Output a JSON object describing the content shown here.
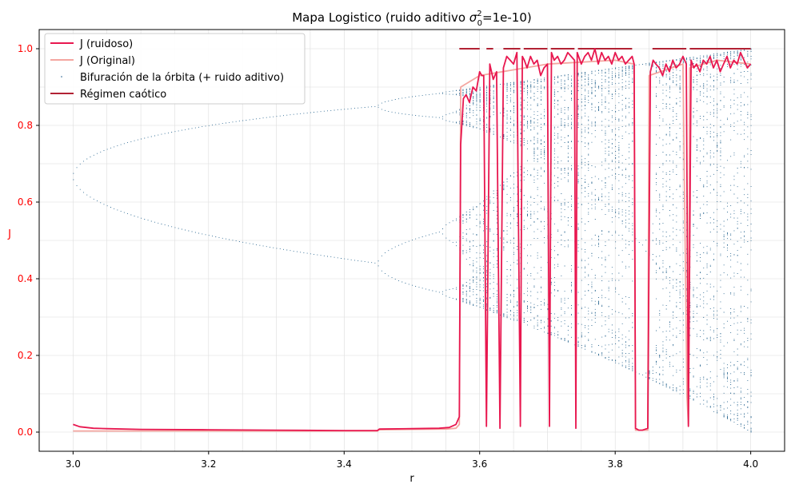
{
  "chart_data": {
    "type": "line",
    "title": "Mapa Logistico (ruido aditivo σ₀²=1e-10)",
    "title_prefix": "Mapa Logistico (ruido aditivo ",
    "title_sigma": "σ",
    "title_sub": "0",
    "title_sup": "2",
    "title_suffix": "=1e-10)",
    "xlabel": "r",
    "ylabel": "J",
    "xlim": [
      2.95,
      4.05
    ],
    "ylim": [
      -0.05,
      1.05
    ],
    "xticks": [
      "3.0",
      "3.2",
      "3.4",
      "3.6",
      "3.8",
      "4.0"
    ],
    "xtick_values": [
      3.0,
      3.2,
      3.4,
      3.6,
      3.8,
      4.0
    ],
    "yticks": [
      "0.0",
      "0.2",
      "0.4",
      "0.6",
      "0.8",
      "1.0"
    ],
    "ytick_values": [
      0.0,
      0.2,
      0.4,
      0.6,
      0.8,
      1.0
    ],
    "grid": true,
    "legend_position": "top-left",
    "colors": {
      "noisy": "#e8174f",
      "original": "#f4a6a0",
      "bifurcation": "#1f5f8b",
      "chaotic": "#b22234",
      "ytick": "#ff0000"
    },
    "series": [
      {
        "name": "J (ruidoso)",
        "style": "line",
        "x": [
          3.0,
          3.01,
          3.03,
          3.05,
          3.1,
          3.2,
          3.3,
          3.4,
          3.449,
          3.452,
          3.5,
          3.54,
          3.555,
          3.565,
          3.57,
          3.572,
          3.576,
          3.58,
          3.585,
          3.59,
          3.595,
          3.6,
          3.603,
          3.606,
          3.61,
          3.615,
          3.62,
          3.625,
          3.63,
          3.635,
          3.64,
          3.645,
          3.65,
          3.655,
          3.66,
          3.663,
          3.666,
          3.67,
          3.675,
          3.68,
          3.685,
          3.69,
          3.695,
          3.7,
          3.703,
          3.706,
          3.71,
          3.715,
          3.72,
          3.725,
          3.73,
          3.735,
          3.74,
          3.742,
          3.744,
          3.748,
          3.75,
          3.755,
          3.76,
          3.765,
          3.77,
          3.775,
          3.78,
          3.785,
          3.79,
          3.795,
          3.8,
          3.805,
          3.81,
          3.815,
          3.82,
          3.825,
          3.828,
          3.83,
          3.835,
          3.84,
          3.845,
          3.848,
          3.852,
          3.856,
          3.86,
          3.865,
          3.87,
          3.875,
          3.88,
          3.885,
          3.89,
          3.895,
          3.9,
          3.905,
          3.908,
          3.912,
          3.916,
          3.92,
          3.925,
          3.93,
          3.935,
          3.94,
          3.945,
          3.95,
          3.955,
          3.96,
          3.965,
          3.97,
          3.975,
          3.98,
          3.985,
          3.99,
          3.995,
          4.0
        ],
        "y": [
          0.02,
          0.014,
          0.01,
          0.009,
          0.007,
          0.006,
          0.005,
          0.004,
          0.004,
          0.008,
          0.009,
          0.01,
          0.012,
          0.02,
          0.04,
          0.75,
          0.87,
          0.88,
          0.86,
          0.9,
          0.89,
          0.94,
          0.93,
          0.93,
          0.015,
          0.96,
          0.92,
          0.94,
          0.01,
          0.95,
          0.98,
          0.97,
          0.96,
          0.99,
          0.015,
          0.98,
          0.97,
          0.95,
          0.98,
          0.96,
          0.97,
          0.93,
          0.95,
          0.96,
          0.015,
          0.99,
          0.97,
          0.98,
          0.96,
          0.97,
          0.99,
          0.98,
          0.97,
          0.01,
          0.99,
          0.97,
          0.96,
          0.98,
          0.99,
          0.97,
          1.0,
          0.96,
          0.99,
          0.97,
          0.98,
          0.96,
          0.99,
          0.97,
          0.98,
          0.96,
          0.97,
          0.98,
          0.96,
          0.01,
          0.005,
          0.005,
          0.008,
          0.01,
          0.94,
          0.97,
          0.96,
          0.95,
          0.93,
          0.96,
          0.94,
          0.97,
          0.95,
          0.96,
          0.98,
          0.96,
          0.015,
          0.97,
          0.95,
          0.96,
          0.94,
          0.97,
          0.96,
          0.98,
          0.95,
          0.97,
          0.94,
          0.96,
          0.98,
          0.95,
          0.97,
          0.96,
          0.99,
          0.97,
          0.95,
          0.96
        ]
      },
      {
        "name": "J (Original)",
        "style": "line",
        "x": [
          3.0,
          3.05,
          3.1,
          3.2,
          3.3,
          3.4,
          3.449,
          3.452,
          3.5,
          3.55,
          3.565,
          3.57,
          3.572,
          3.6,
          3.7,
          3.8,
          3.828,
          3.83,
          3.848,
          3.85,
          3.9,
          3.906,
          3.908,
          3.91,
          3.95,
          4.0
        ],
        "y": [
          0.003,
          0.003,
          0.003,
          0.003,
          0.003,
          0.003,
          0.003,
          0.006,
          0.007,
          0.008,
          0.01,
          0.02,
          0.9,
          0.93,
          0.96,
          0.97,
          0.96,
          0.005,
          0.005,
          0.93,
          0.96,
          0.09,
          0.02,
          0.95,
          0.97,
          0.96
        ]
      },
      {
        "name": "Bifuración de la órbita (+ ruido aditivo)",
        "style": "points",
        "r_range": [
          3.0,
          4.0
        ],
        "r_step": 0.005,
        "orbit_points_per_r": 60
      },
      {
        "name": "Régimen caótico",
        "style": "segments",
        "y": 1.0,
        "segments": [
          [
            3.57,
            3.6
          ],
          [
            3.61,
            3.62
          ],
          [
            3.635,
            3.66
          ],
          [
            3.665,
            3.7
          ],
          [
            3.705,
            3.74
          ],
          [
            3.745,
            3.825
          ],
          [
            3.855,
            3.905
          ],
          [
            3.91,
            4.0
          ]
        ]
      }
    ]
  }
}
